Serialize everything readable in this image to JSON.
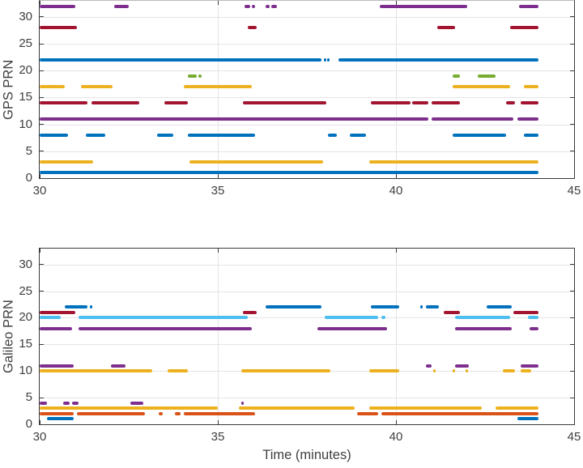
{
  "figure": {
    "background": "#ffffff",
    "axis_color": "#3a3a3a",
    "grid_color": "#e4e4e4",
    "text_color": "#3f3f3f",
    "palette": {
      "blue": "#0072BD",
      "orange": "#D95319",
      "yellow": "#EDB120",
      "purple": "#7E2F8E",
      "green": "#77AC30",
      "cyan": "#4DBEEE",
      "darkred": "#A2142F"
    }
  },
  "chart_data": [
    {
      "type": "line",
      "style": "availability-segments",
      "title": "",
      "ylabel": "GPS PRN",
      "xlabel": "",
      "xlim": [
        30,
        45
      ],
      "ylim": [
        0,
        33
      ],
      "x_ticks": [
        30,
        35,
        40,
        45
      ],
      "y_ticks": [
        0,
        5,
        10,
        15,
        20,
        25,
        30
      ],
      "grid": true,
      "legend": "none",
      "x_units": "minutes",
      "series": [
        {
          "name": "GPS PRN 1",
          "prn": 1,
          "color": "#0072BD",
          "segments": [
            [
              30,
              44
            ]
          ]
        },
        {
          "name": "GPS PRN 3",
          "prn": 3,
          "color": "#EDB120",
          "segments": [
            [
              30,
              31.5
            ],
            [
              34.2,
              37.95
            ],
            [
              39.25,
              44
            ]
          ]
        },
        {
          "name": "GPS PRN 8",
          "prn": 8,
          "color": "#0072BD",
          "segments": [
            [
              30,
              30.8
            ],
            [
              31.3,
              31.85
            ],
            [
              33.3,
              33.75
            ],
            [
              34.15,
              36.05
            ],
            [
              38.1,
              38.35
            ],
            [
              38.7,
              39.15
            ],
            [
              41.6,
              43.1
            ],
            [
              43.6,
              44
            ]
          ]
        },
        {
          "name": "GPS PRN 11",
          "prn": 11,
          "color": "#7E2F8E",
          "segments": [
            [
              30,
              40.9
            ],
            [
              41.0,
              43.3
            ],
            [
              43.4,
              44
            ]
          ]
        },
        {
          "name": "GPS PRN 14",
          "prn": 14,
          "color": "#A2142F",
          "segments": [
            [
              30,
              31.35
            ],
            [
              31.45,
              32.8
            ],
            [
              33.5,
              34.15
            ],
            [
              35.7,
              38.05
            ],
            [
              39.3,
              40.4
            ],
            [
              40.45,
              40.9
            ],
            [
              41.0,
              41.8
            ],
            [
              43.1,
              43.35
            ],
            [
              43.5,
              44
            ]
          ]
        },
        {
          "name": "GPS PRN 17",
          "prn": 17,
          "color": "#EDB120",
          "segments": [
            [
              30,
              30.7
            ],
            [
              31.15,
              32.05
            ],
            [
              34.05,
              35.95
            ],
            [
              41.6,
              43.2
            ],
            [
              43.6,
              44
            ]
          ]
        },
        {
          "name": "GPS PRN 19",
          "prn": 19,
          "color": "#77AC30",
          "segments": [
            [
              34.15,
              34.4
            ],
            [
              34.45,
              34.55
            ],
            [
              41.6,
              41.8
            ],
            [
              42.3,
              42.8
            ]
          ]
        },
        {
          "name": "GPS PRN 22",
          "prn": 22,
          "color": "#0072BD",
          "segments": [
            [
              30,
              37.9
            ],
            [
              37.97,
              38.02
            ],
            [
              38.06,
              38.12
            ],
            [
              38.38,
              44
            ]
          ]
        },
        {
          "name": "GPS PRN 28",
          "prn": 28,
          "color": "#A2142F",
          "segments": [
            [
              30,
              31.05
            ],
            [
              35.85,
              36.1
            ],
            [
              41.15,
              41.65
            ],
            [
              43.2,
              44
            ]
          ]
        },
        {
          "name": "GPS PRN 32",
          "prn": 32,
          "color": "#7E2F8E",
          "segments": [
            [
              30,
              31.0
            ],
            [
              32.1,
              32.5
            ],
            [
              35.75,
              35.9
            ],
            [
              35.95,
              36.05
            ],
            [
              36.35,
              36.45
            ],
            [
              36.5,
              36.65
            ],
            [
              39.55,
              42.0
            ],
            [
              43.45,
              44
            ]
          ]
        }
      ]
    },
    {
      "type": "line",
      "style": "availability-segments",
      "title": "",
      "ylabel": "Galileo PRN",
      "xlabel": "Time (minutes)",
      "xlim": [
        30,
        45
      ],
      "ylim": [
        0,
        33
      ],
      "x_ticks": [
        30,
        35,
        40,
        45
      ],
      "y_ticks": [
        0,
        5,
        10,
        15,
        20,
        25,
        30
      ],
      "grid": true,
      "legend": "none",
      "x_units": "minutes",
      "series": [
        {
          "name": "Galileo PRN 1",
          "prn": 1,
          "color": "#0072BD",
          "segments": [
            [
              30.2,
              30.95
            ],
            [
              43.4,
              44
            ]
          ]
        },
        {
          "name": "Galileo PRN 2",
          "prn": 2,
          "color": "#D95319",
          "segments": [
            [
              30,
              30.95
            ],
            [
              31.05,
              32.95
            ],
            [
              33.35,
              33.45
            ],
            [
              33.8,
              33.95
            ],
            [
              34.05,
              36.05
            ],
            [
              38.9,
              39.5
            ],
            [
              39.6,
              44
            ]
          ]
        },
        {
          "name": "Galileo PRN 3",
          "prn": 3,
          "color": "#EDB120",
          "segments": [
            [
              30,
              35.0
            ],
            [
              35.6,
              38.85
            ],
            [
              39.25,
              42.4
            ],
            [
              42.8,
              44
            ]
          ]
        },
        {
          "name": "Galileo PRN 4",
          "prn": 4,
          "color": "#7E2F8E",
          "segments": [
            [
              30,
              30.2
            ],
            [
              30.65,
              30.85
            ],
            [
              30.9,
              31.1
            ],
            [
              32.55,
              32.9
            ],
            [
              35.65,
              35.72
            ]
          ]
        },
        {
          "name": "Galileo PRN 10",
          "prn": 10,
          "color": "#EDB120",
          "segments": [
            [
              30,
              33.15
            ],
            [
              33.6,
              34.15
            ],
            [
              35.65,
              38.15
            ],
            [
              39.25,
              40.1
            ],
            [
              41.05,
              41.12
            ],
            [
              41.58,
              41.65
            ],
            [
              41.95,
              42.02
            ],
            [
              43.0,
              43.35
            ],
            [
              43.5,
              43.8
            ]
          ]
        },
        {
          "name": "Galileo PRN 11",
          "prn": 11,
          "color": "#7E2F8E",
          "segments": [
            [
              30,
              30.95
            ],
            [
              32.0,
              32.4
            ],
            [
              40.85,
              41.0
            ],
            [
              41.65,
              42.05
            ],
            [
              43.5,
              44
            ]
          ]
        },
        {
          "name": "Galileo PRN 18",
          "prn": 18,
          "color": "#7E2F8E",
          "segments": [
            [
              30,
              30.9
            ],
            [
              31.1,
              35.95
            ],
            [
              37.8,
              39.75
            ],
            [
              41.65,
              43.25
            ],
            [
              43.75,
              44
            ]
          ]
        },
        {
          "name": "Galileo PRN 20",
          "prn": 20,
          "color": "#4DBEEE",
          "segments": [
            [
              30,
              30.6
            ],
            [
              31.1,
              35.85
            ],
            [
              38.0,
              39.5
            ],
            [
              39.6,
              39.7
            ],
            [
              41.65,
              43.2
            ],
            [
              43.7,
              44
            ]
          ]
        },
        {
          "name": "Galileo PRN 21",
          "prn": 21,
          "color": "#A2142F",
          "segments": [
            [
              30,
              31.0
            ],
            [
              35.7,
              36.1
            ],
            [
              41.35,
              41.8
            ],
            [
              43.3,
              44
            ]
          ]
        },
        {
          "name": "Galileo PRN 22",
          "prn": 22,
          "color": "#0072BD",
          "segments": [
            [
              30.7,
              31.35
            ],
            [
              31.4,
              31.47
            ],
            [
              36.35,
              37.9
            ],
            [
              39.3,
              40.1
            ],
            [
              40.68,
              40.75
            ],
            [
              40.85,
              41.2
            ],
            [
              42.55,
              43.25
            ]
          ]
        }
      ]
    }
  ]
}
